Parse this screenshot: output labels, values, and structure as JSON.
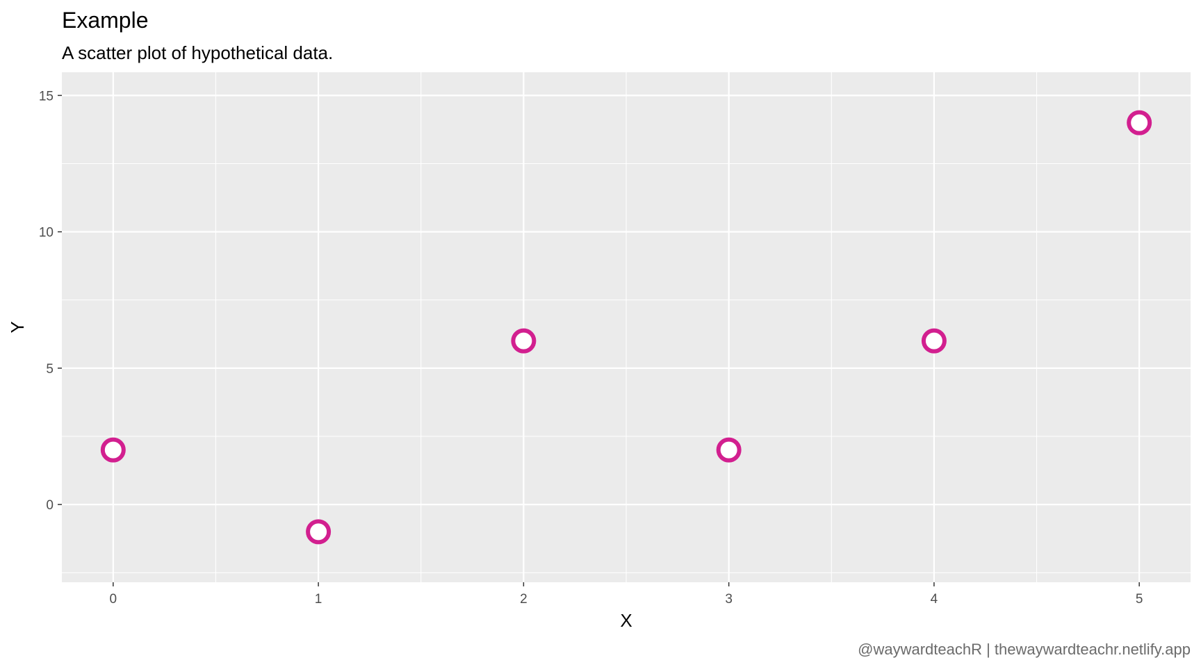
{
  "chart_data": {
    "type": "scatter",
    "title": "Example",
    "subtitle": "A scatter plot of hypothetical data.",
    "xlabel": "X",
    "ylabel": "Y",
    "caption": "@waywardteachR | thewaywardteachr.netlify.app",
    "x": [
      0,
      1,
      2,
      3,
      4,
      5
    ],
    "y": [
      2,
      -1,
      6,
      2,
      6,
      14
    ],
    "xlim": [
      -0.25,
      5.25
    ],
    "ylim": [
      -2.85,
      15.85
    ],
    "x_ticks": [
      0,
      1,
      2,
      3,
      4,
      5
    ],
    "x_tick_labels": [
      "0",
      "1",
      "2",
      "3",
      "4",
      "5"
    ],
    "y_ticks": [
      0,
      5,
      10,
      15
    ],
    "y_tick_labels": [
      "0",
      "5",
      "10",
      "15"
    ],
    "grid": true,
    "legend": "none",
    "colors": {
      "panel_background": "#ebebeb",
      "grid_line": "#ffffff",
      "point_stroke": "#d21f8f",
      "point_fill": "#ffffff",
      "tick_mark": "#333333"
    }
  }
}
